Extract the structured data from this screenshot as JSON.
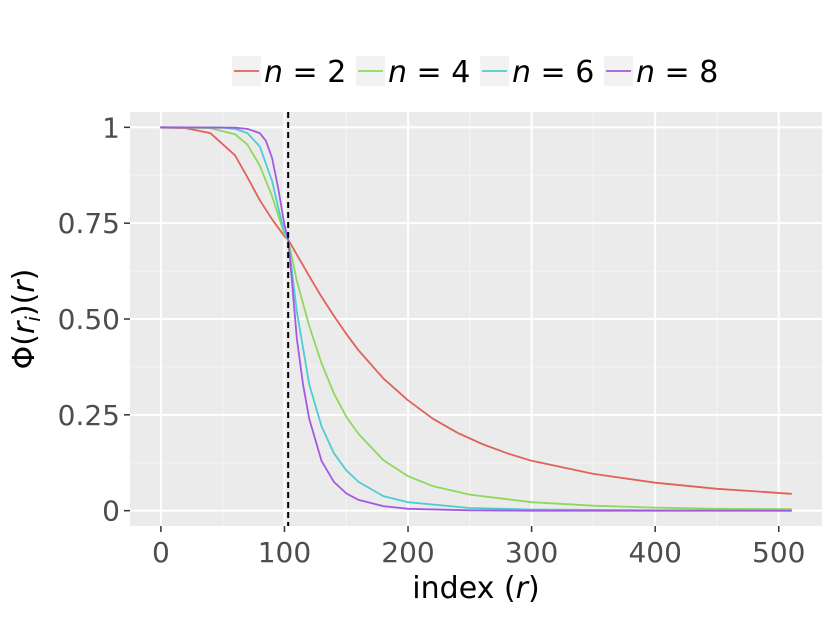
{
  "chart_data": {
    "type": "line",
    "title": "",
    "xlabel": {
      "text": "index (",
      "var": "r",
      "close": ")"
    },
    "ylabel": {
      "text": "Φ(",
      "var": "r",
      "sub": "i",
      "close": ")(",
      "var2": "r",
      "close2": ")"
    },
    "xlim": [
      -25,
      535
    ],
    "ylim": [
      -0.04,
      1.04
    ],
    "x_ticks": [
      0,
      100,
      200,
      300,
      400,
      500
    ],
    "x_tick_labels": [
      "0",
      "100",
      "200",
      "300",
      "400",
      "500"
    ],
    "y_ticks": [
      0,
      0.25,
      0.5,
      0.75,
      1
    ],
    "y_tick_labels": [
      "0",
      "0.25",
      "0.50",
      "0.75",
      "1"
    ],
    "grid": true,
    "legend_position": "top",
    "reference_line": {
      "x": 103,
      "style": "dashed",
      "color": "#000000"
    },
    "series": [
      {
        "name": "n = 2",
        "n_value": "2",
        "color": "#e0625a",
        "x": [
          0,
          20,
          40,
          60,
          70,
          80,
          90,
          95,
          100,
          103,
          110,
          120,
          130,
          140,
          150,
          160,
          180,
          200,
          220,
          240,
          260,
          280,
          300,
          350,
          400,
          450,
          510
        ],
        "y": [
          0.999,
          0.998,
          0.985,
          0.927,
          0.87,
          0.81,
          0.76,
          0.738,
          0.715,
          0.707,
          0.668,
          0.612,
          0.558,
          0.508,
          0.461,
          0.418,
          0.345,
          0.288,
          0.24,
          0.203,
          0.174,
          0.15,
          0.13,
          0.096,
          0.073,
          0.057,
          0.044
        ]
      },
      {
        "name": "n = 4",
        "n_value": "4",
        "color": "#8ed85c",
        "x": [
          0,
          40,
          60,
          70,
          80,
          90,
          95,
          100,
          103,
          110,
          120,
          130,
          140,
          150,
          160,
          180,
          200,
          220,
          250,
          300,
          350,
          400,
          450,
          510
        ],
        "y": [
          1.0,
          0.998,
          0.982,
          0.955,
          0.9,
          0.82,
          0.77,
          0.72,
          0.707,
          0.6,
          0.482,
          0.385,
          0.306,
          0.245,
          0.2,
          0.132,
          0.09,
          0.064,
          0.042,
          0.022,
          0.013,
          0.008,
          0.005,
          0.004
        ]
      },
      {
        "name": "n = 6",
        "n_value": "6",
        "color": "#4fcbd3",
        "x": [
          0,
          50,
          60,
          70,
          80,
          90,
          95,
          100,
          103,
          110,
          120,
          130,
          140,
          150,
          160,
          180,
          200,
          250,
          300,
          400,
          510
        ],
        "y": [
          1.0,
          0.999,
          0.996,
          0.985,
          0.95,
          0.86,
          0.79,
          0.725,
          0.707,
          0.52,
          0.33,
          0.22,
          0.15,
          0.105,
          0.075,
          0.038,
          0.022,
          0.007,
          0.003,
          0.001,
          0.0
        ]
      },
      {
        "name": "n = 8",
        "n_value": "8",
        "color": "#a35ae0",
        "x": [
          0,
          60,
          70,
          80,
          85,
          90,
          95,
          100,
          103,
          106,
          110,
          115,
          120,
          130,
          140,
          150,
          160,
          180,
          200,
          250,
          300,
          400,
          510
        ],
        "y": [
          1.0,
          0.999,
          0.996,
          0.985,
          0.965,
          0.92,
          0.84,
          0.745,
          0.707,
          0.6,
          0.45,
          0.33,
          0.24,
          0.13,
          0.075,
          0.045,
          0.028,
          0.012,
          0.005,
          0.001,
          0.0,
          0.0,
          0.0
        ]
      }
    ]
  }
}
